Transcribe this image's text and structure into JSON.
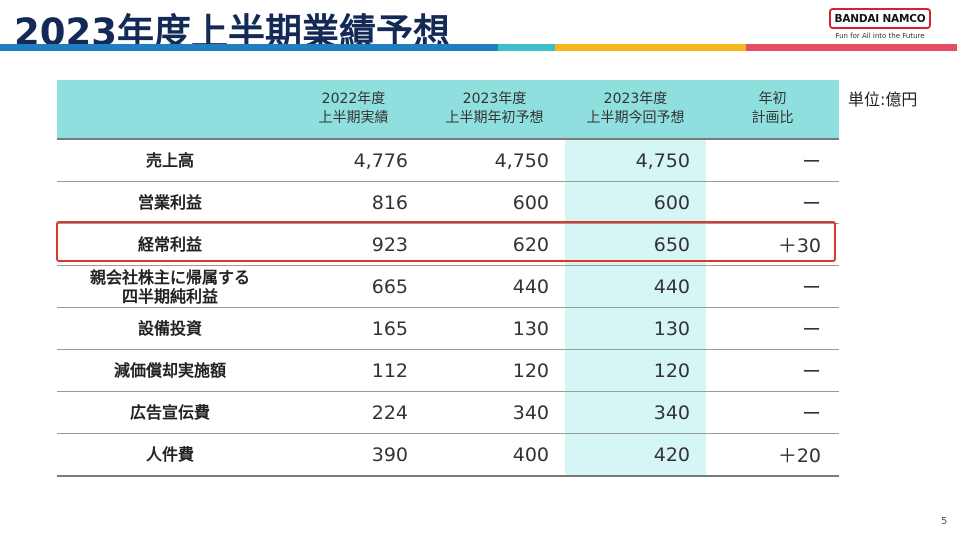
{
  "title": "2023年度上半期業績予想",
  "logo": {
    "name": "BANDAI NAMCO",
    "tagline": "Fun for All into the Future"
  },
  "unit": "単位:億円",
  "page_number": "5",
  "colors": {
    "title": "#132a57",
    "header_bg": "#8fdfdf",
    "forecast_column_bg": "#d6f5f5",
    "highlight_border": "#d93a2b"
  },
  "table": {
    "headers": [
      {
        "line1": "",
        "line2": ""
      },
      {
        "line1": "2022年度",
        "line2": "上半期実績"
      },
      {
        "line1": "2023年度",
        "line2": "上半期年初予想"
      },
      {
        "line1": "2023年度",
        "line2": "上半期今回予想"
      },
      {
        "line1": "年初",
        "line2": "計画比"
      }
    ],
    "rows": [
      {
        "label": "売上高",
        "label2": "",
        "v1": "4,776",
        "v2": "4,750",
        "v3": "4,750",
        "diff": "ー"
      },
      {
        "label": "営業利益",
        "label2": "",
        "v1": "816",
        "v2": "600",
        "v3": "600",
        "diff": "ー"
      },
      {
        "label": "経常利益",
        "label2": "",
        "v1": "923",
        "v2": "620",
        "v3": "650",
        "diff": "＋30"
      },
      {
        "label": "親会社株主に帰属する",
        "label2": "四半期純利益",
        "v1": "665",
        "v2": "440",
        "v3": "440",
        "diff": "ー"
      },
      {
        "label": "設備投資",
        "label2": "",
        "v1": "165",
        "v2": "130",
        "v3": "130",
        "diff": "ー"
      },
      {
        "label": "減価償却実施額",
        "label2": "",
        "v1": "112",
        "v2": "120",
        "v3": "120",
        "diff": "ー"
      },
      {
        "label": "広告宣伝費",
        "label2": "",
        "v1": "224",
        "v2": "340",
        "v3": "340",
        "diff": "ー"
      },
      {
        "label": "人件費",
        "label2": "",
        "v1": "390",
        "v2": "400",
        "v3": "420",
        "diff": "＋20"
      }
    ]
  }
}
